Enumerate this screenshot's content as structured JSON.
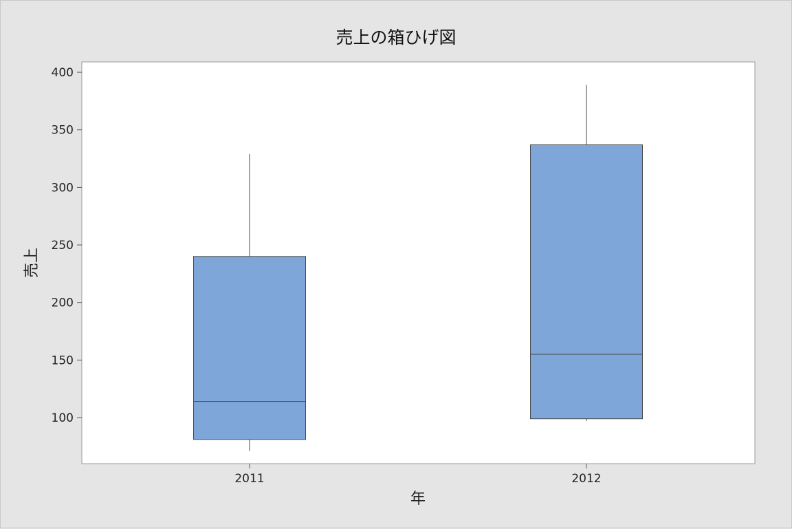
{
  "chart_data": {
    "type": "box",
    "title": "売上の箱ひげ図",
    "xlabel": "年",
    "ylabel": "売上",
    "categories": [
      "2011",
      "2012"
    ],
    "ylim": [
      60,
      409
    ],
    "yticks": [
      100,
      150,
      200,
      250,
      300,
      350,
      400
    ],
    "boxes": [
      {
        "category": "2011",
        "min": 71,
        "q1": 81,
        "median": 114,
        "q3": 240,
        "max": 329
      },
      {
        "category": "2012",
        "min": 97,
        "q1": 99,
        "median": 155,
        "q3": 337,
        "max": 389
      }
    ],
    "grid": false,
    "colors": {
      "box_fill": "#7ea6d8",
      "box_stroke": "#4a4a4a",
      "plot_bg": "#ffffff",
      "page_bg": "#e5e5e5",
      "axis": "#9a9a9a"
    }
  }
}
